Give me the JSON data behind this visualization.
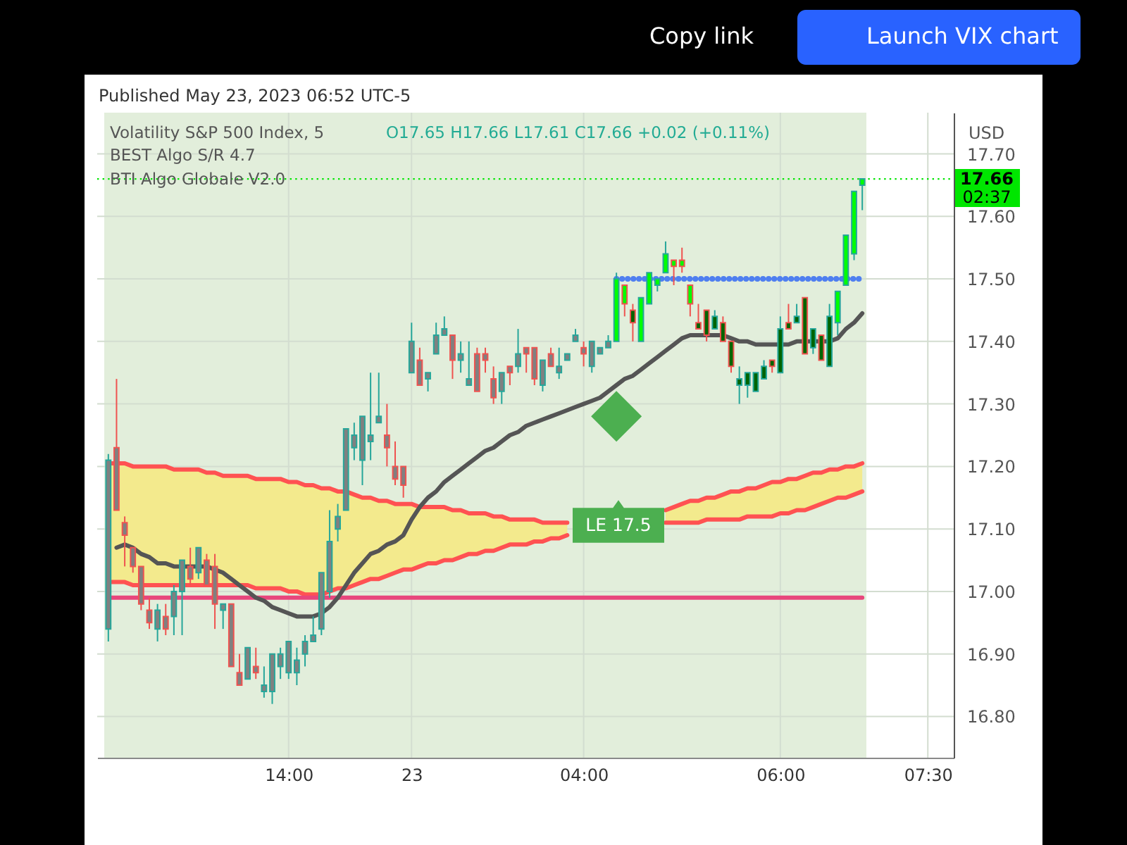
{
  "chart_data": {
    "type": "candlestick",
    "title": "Volatility S&P 500 Index, 5",
    "subtitle": "O17.65 H17.66 L17.61 C17.66 +0.02 (+0.11%)",
    "ylabel": "USD",
    "categories": [
      null,
      null,
      null,
      null,
      null,
      null,
      null,
      null,
      null,
      null,
      null,
      null,
      null,
      null,
      null,
      null,
      null,
      null,
      null,
      null,
      null,
      null,
      "14:00",
      null,
      null,
      null,
      null,
      null,
      null,
      null,
      null,
      null,
      null,
      null,
      null,
      null,
      null,
      "23",
      null,
      null,
      null,
      null,
      null,
      null,
      null,
      null,
      null,
      null,
      null,
      null,
      null,
      null,
      null,
      null,
      null,
      null,
      null,
      null,
      "04:00",
      null,
      null,
      null,
      null,
      null,
      null,
      null,
      null,
      null,
      null,
      null,
      null,
      null,
      null,
      null,
      null,
      null,
      null,
      null,
      null,
      null,
      null,
      null,
      "06:00",
      null,
      null,
      null,
      null,
      null,
      null,
      null,
      null,
      null,
      null,
      null,
      null,
      null,
      null,
      null,
      null,
      null,
      "07:30",
      null,
      null
    ],
    "ohlc": [
      [
        16.94,
        17.22,
        16.92,
        17.21
      ],
      [
        17.23,
        17.34,
        17.13,
        17.13
      ],
      [
        17.11,
        17.12,
        17.04,
        17.09
      ],
      [
        17.07,
        17.07,
        17.03,
        17.04
      ],
      [
        17.04,
        17.04,
        16.97,
        16.98
      ],
      [
        16.97,
        16.99,
        16.94,
        16.95
      ],
      [
        16.94,
        16.98,
        16.92,
        16.97
      ],
      [
        16.96,
        16.98,
        16.93,
        16.94
      ],
      [
        16.96,
        17.01,
        16.93,
        17.0
      ],
      [
        17.0,
        17.05,
        16.93,
        17.05
      ],
      [
        17.04,
        17.07,
        17.01,
        17.02
      ],
      [
        17.03,
        17.07,
        17.02,
        17.07
      ],
      [
        17.05,
        17.06,
        17.01,
        17.01
      ],
      [
        17.04,
        17.06,
        16.94,
        16.98
      ],
      [
        16.97,
        16.98,
        16.94,
        16.98
      ],
      [
        16.98,
        16.98,
        16.88,
        16.88
      ],
      [
        16.87,
        16.9,
        16.85,
        16.85
      ],
      [
        16.86,
        16.91,
        16.86,
        16.91
      ],
      [
        16.88,
        16.91,
        16.86,
        16.87
      ],
      [
        16.84,
        16.88,
        16.83,
        16.85
      ],
      [
        16.84,
        16.9,
        16.82,
        16.9
      ],
      [
        16.88,
        16.91,
        16.86,
        16.9
      ],
      [
        16.87,
        16.92,
        16.86,
        16.92
      ],
      [
        16.87,
        16.91,
        16.85,
        16.89
      ],
      [
        16.9,
        16.93,
        16.88,
        16.92
      ],
      [
        16.92,
        16.96,
        16.92,
        16.93
      ],
      [
        16.94,
        17.03,
        16.93,
        17.03
      ],
      [
        17.0,
        17.13,
        16.99,
        17.08
      ],
      [
        17.1,
        17.14,
        17.08,
        17.12
      ],
      [
        17.13,
        17.26,
        17.13,
        17.26
      ],
      [
        17.23,
        17.27,
        17.21,
        17.25
      ],
      [
        17.21,
        17.28,
        17.17,
        17.28
      ],
      [
        17.24,
        17.35,
        17.21,
        17.25
      ],
      [
        17.27,
        17.35,
        17.27,
        17.28
      ],
      [
        17.25,
        17.3,
        17.2,
        17.23
      ],
      [
        17.2,
        17.24,
        17.17,
        17.18
      ],
      [
        17.2,
        17.2,
        17.15,
        17.17
      ],
      [
        17.35,
        17.43,
        17.35,
        17.4
      ],
      [
        17.37,
        17.39,
        17.33,
        17.33
      ],
      [
        17.34,
        17.35,
        17.32,
        17.35
      ],
      [
        17.38,
        17.43,
        17.38,
        17.41
      ],
      [
        17.41,
        17.44,
        17.41,
        17.42
      ],
      [
        17.41,
        17.41,
        17.34,
        17.37
      ],
      [
        17.37,
        17.4,
        17.35,
        17.38
      ],
      [
        17.33,
        17.4,
        17.33,
        17.34
      ],
      [
        17.38,
        17.39,
        17.32,
        17.32
      ],
      [
        17.38,
        17.39,
        17.35,
        17.37
      ],
      [
        17.34,
        17.36,
        17.3,
        17.31
      ],
      [
        17.32,
        17.35,
        17.3,
        17.35
      ],
      [
        17.36,
        17.36,
        17.33,
        17.35
      ],
      [
        17.36,
        17.42,
        17.35,
        17.38
      ],
      [
        17.39,
        17.39,
        17.35,
        17.38
      ],
      [
        17.39,
        17.39,
        17.33,
        17.34
      ],
      [
        17.33,
        17.37,
        17.32,
        17.37
      ],
      [
        17.38,
        17.39,
        17.36,
        17.36
      ],
      [
        17.35,
        17.39,
        17.34,
        17.36
      ],
      [
        17.37,
        17.38,
        17.37,
        17.38
      ],
      [
        17.4,
        17.42,
        17.4,
        17.41
      ],
      [
        17.39,
        17.4,
        17.36,
        17.38
      ],
      [
        17.36,
        17.4,
        17.35,
        17.4
      ],
      [
        17.38,
        17.39,
        17.38,
        17.39
      ],
      [
        17.39,
        17.41,
        17.39,
        17.4
      ],
      [
        17.4,
        17.51,
        17.4,
        17.5
      ],
      [
        17.49,
        17.49,
        17.44,
        17.46
      ],
      [
        17.45,
        17.46,
        17.4,
        17.43
      ],
      [
        17.4,
        17.47,
        17.4,
        17.47
      ],
      [
        17.46,
        17.51,
        17.46,
        17.51
      ],
      [
        17.49,
        17.5,
        17.48,
        17.5
      ],
      [
        17.51,
        17.56,
        17.51,
        17.54
      ],
      [
        17.53,
        17.53,
        17.49,
        17.52
      ],
      [
        17.53,
        17.55,
        17.51,
        17.52
      ],
      [
        17.49,
        17.49,
        17.44,
        17.46
      ],
      [
        17.43,
        17.46,
        17.42,
        17.42
      ],
      [
        17.45,
        17.45,
        17.4,
        17.41
      ],
      [
        17.42,
        17.45,
        17.42,
        17.44
      ],
      [
        17.43,
        17.44,
        17.4,
        17.4
      ],
      [
        17.4,
        17.4,
        17.35,
        17.36
      ],
      [
        17.33,
        17.36,
        17.3,
        17.34
      ],
      [
        17.33,
        17.35,
        17.31,
        17.35
      ],
      [
        17.32,
        17.35,
        17.32,
        17.35
      ],
      [
        17.34,
        17.37,
        17.34,
        17.36
      ],
      [
        17.37,
        17.37,
        17.35,
        17.36
      ],
      [
        17.35,
        17.44,
        17.35,
        17.42
      ],
      [
        17.43,
        17.46,
        17.42,
        17.42
      ],
      [
        17.43,
        17.46,
        17.43,
        17.44
      ],
      [
        17.47,
        17.47,
        17.38,
        17.38
      ],
      [
        17.39,
        17.42,
        17.38,
        17.42
      ],
      [
        17.41,
        17.41,
        17.37,
        17.37
      ],
      [
        17.36,
        17.46,
        17.36,
        17.44
      ],
      [
        17.43,
        17.48,
        17.41,
        17.48
      ],
      [
        17.49,
        17.57,
        17.49,
        17.57
      ],
      [
        17.54,
        17.64,
        17.53,
        17.64
      ],
      [
        17.65,
        17.66,
        17.61,
        17.66
      ],
      null,
      null,
      null,
      null,
      null,
      null,
      null,
      null,
      null,
      null
    ],
    "colors": [
      "#808080",
      "#808080",
      "#808080",
      "#808080",
      "#808080",
      "#808080",
      "#808080",
      "#808080",
      "#808080",
      "#808080",
      "#808080",
      "#808080",
      "#808080",
      "#808080",
      "#808080",
      "#808080",
      "#808080",
      "#808080",
      "#808080",
      "#808080",
      "#808080",
      "#808080",
      "#808080",
      "#808080",
      "#808080",
      "#808080",
      "#808080",
      "#808080",
      "#808080",
      "#808080",
      "#808080",
      "#808080",
      "#808080",
      "#808080",
      "#808080",
      "#808080",
      "#808080",
      "#808080",
      "#808080",
      "#808080",
      "#808080",
      "#808080",
      "#808080",
      "#808080",
      "#808080",
      "#808080",
      "#808080",
      "#808080",
      "#808080",
      "#808080",
      "#808080",
      "#808080",
      "#808080",
      "#808080",
      "#808080",
      "#808080",
      "#808080",
      "#808080",
      "#808080",
      "#808080",
      "#808080",
      "#808080",
      "#00ff00",
      "#00ff00",
      "#006400",
      "#00ff00",
      "#00ff00",
      "#00ff00",
      "#00ff00",
      "#00ff00",
      "#00ff00",
      "#00ff00",
      "#006400",
      "#006400",
      "#006400",
      "#006400",
      "#006400",
      "#006400",
      "#006400",
      "#006400",
      "#006400",
      "#006400",
      "#006400",
      "#006400",
      "#006400",
      "#006400",
      "#006400",
      "#006400",
      "#006400",
      "#00ff00",
      "#00ff00",
      "#00ff00",
      "#00ff00",
      null,
      null,
      null,
      null,
      null,
      null,
      null,
      null,
      null,
      null
    ],
    "ylim": [
      16.734,
      17.766
    ],
    "yticks": [
      {
        "value": 16.8,
        "label": "16.80"
      },
      {
        "value": 16.9,
        "label": "16.90"
      },
      {
        "value": 17.0,
        "label": "17.00"
      },
      {
        "value": 17.1,
        "label": "17.10"
      },
      {
        "value": 17.2,
        "label": "17.20"
      },
      {
        "value": 17.3,
        "label": "17.30"
      },
      {
        "value": 17.4,
        "label": "17.40"
      },
      {
        "value": 17.5,
        "label": "17.50"
      },
      {
        "value": 17.6,
        "label": "17.60"
      },
      {
        "value": 17.7,
        "label": "17.70"
      }
    ],
    "grid": true,
    "series": [
      {
        "type": "line",
        "color": "#ff5252",
        "values": [
          17.205,
          17.205,
          17.205,
          17.2,
          17.2,
          17.2,
          17.2,
          17.2,
          17.195,
          17.195,
          17.195,
          17.195,
          17.19,
          17.19,
          17.185,
          17.185,
          17.185,
          17.185,
          17.18,
          17.18,
          17.18,
          17.18,
          17.175,
          17.175,
          17.17,
          17.17,
          17.165,
          17.165,
          17.16,
          17.16,
          17.155,
          17.15,
          17.15,
          17.145,
          17.145,
          17.14,
          17.14,
          17.14,
          17.135,
          17.135,
          17.135,
          17.135,
          17.13,
          17.13,
          17.125,
          17.125,
          17.125,
          17.12,
          17.12,
          17.115,
          17.115,
          17.115,
          17.115,
          17.11,
          17.11,
          17.11,
          17.11,
          null,
          null,
          null,
          null,
          null,
          null,
          null,
          null,
          null,
          null,
          null,
          17.11,
          17.11,
          17.11,
          17.11,
          17.11,
          17.115,
          17.115,
          17.115,
          17.115,
          17.115,
          17.12,
          17.12,
          17.12,
          17.12,
          17.125,
          17.125,
          17.13,
          17.13,
          17.135,
          17.14,
          17.145,
          17.15,
          17.15,
          17.155,
          17.16,
          null,
          null,
          null,
          null,
          null,
          null,
          null,
          null,
          null,
          null
        ],
        "upper": [
          17.205,
          17.205,
          17.205,
          17.2,
          17.2,
          17.2,
          17.2,
          17.2,
          17.195,
          17.195,
          17.195,
          17.195,
          17.19,
          17.19,
          17.185,
          17.185,
          17.185,
          17.185,
          17.18,
          17.18,
          17.18,
          17.18,
          17.175,
          17.175,
          17.17,
          17.17,
          17.165,
          17.165,
          17.16,
          17.16,
          17.155,
          17.15,
          17.15,
          17.145,
          17.145,
          17.14,
          17.14,
          17.14,
          17.135,
          17.135,
          17.135,
          17.135,
          17.13,
          17.13,
          17.125,
          17.125,
          17.125,
          17.12,
          17.12,
          17.115,
          17.115,
          17.115,
          17.115,
          17.11,
          17.11,
          17.11,
          17.11,
          null,
          null,
          null,
          null,
          null,
          null,
          null,
          null,
          null,
          null,
          null,
          17.11,
          17.11,
          17.11,
          17.11,
          17.11,
          17.115,
          17.115,
          17.115,
          17.115,
          17.115,
          17.12,
          17.12,
          17.12,
          17.12,
          17.125,
          17.125,
          17.13,
          17.13,
          17.135,
          17.14,
          17.145,
          17.15,
          17.15,
          17.155,
          17.16,
          null,
          null,
          null,
          null,
          null,
          null,
          null,
          null,
          null,
          null
        ],
        "lower": [
          17.015,
          17.015,
          17.015,
          17.01,
          17.01,
          17.01,
          17.01,
          17.01,
          17.01,
          17.01,
          17.01,
          17.01,
          17.01,
          17.01,
          17.01,
          17.01,
          17.01,
          17.01,
          17.005,
          17.005,
          17.005,
          17.005,
          17.0,
          17.0,
          16.995,
          16.995,
          16.995,
          17.0,
          17.005,
          17.005,
          17.01,
          17.015,
          17.02,
          17.02,
          17.025,
          17.03,
          17.035,
          17.035,
          17.04,
          17.045,
          17.045,
          17.05,
          17.05,
          17.055,
          17.06,
          17.06,
          17.065,
          17.065,
          17.07,
          17.075,
          17.075,
          17.075,
          17.08,
          17.08,
          17.085,
          17.085,
          17.09,
          null,
          null,
          null,
          null,
          null,
          null,
          null,
          null,
          null,
          null,
          null,
          17.13,
          17.135,
          17.14,
          17.145,
          17.145,
          17.15,
          17.15,
          17.155,
          17.16,
          17.16,
          17.165,
          17.165,
          17.17,
          17.175,
          17.175,
          17.18,
          17.18,
          17.185,
          17.19,
          17.19,
          17.195,
          17.195,
          17.2,
          17.2,
          17.205,
          null,
          null,
          null,
          null,
          null,
          null,
          null,
          null,
          null,
          null
        ]
      },
      {
        "type": "line",
        "color": "#ff5252",
        "values": [
          17.015,
          17.015,
          17.015,
          17.01,
          17.01,
          17.01,
          17.01,
          17.01,
          17.01,
          17.01,
          17.01,
          17.01,
          17.01,
          17.01,
          17.01,
          17.01,
          17.01,
          17.01,
          17.005,
          17.005,
          17.005,
          17.005,
          17.0,
          17.0,
          16.995,
          16.995,
          16.995,
          17.0,
          17.005,
          17.005,
          17.01,
          17.015,
          17.02,
          17.02,
          17.025,
          17.03,
          17.035,
          17.035,
          17.04,
          17.045,
          17.045,
          17.05,
          17.05,
          17.055,
          17.06,
          17.06,
          17.065,
          17.065,
          17.07,
          17.075,
          17.075,
          17.075,
          17.08,
          17.08,
          17.085,
          17.085,
          17.09,
          null,
          null,
          null,
          null,
          null,
          null,
          null,
          null,
          null,
          null,
          null,
          17.13,
          17.135,
          17.14,
          17.145,
          17.145,
          17.15,
          17.15,
          17.155,
          17.16,
          17.16,
          17.165,
          17.165,
          17.17,
          17.175,
          17.175,
          17.18,
          17.18,
          17.185,
          17.19,
          17.19,
          17.195,
          17.195,
          17.2,
          17.2,
          17.205,
          null,
          null,
          null,
          null,
          null,
          null,
          null,
          null,
          null,
          null
        ]
      },
      {
        "type": "line",
        "color": "#e8467c",
        "values": [
          16.99,
          16.99,
          16.99,
          16.99,
          16.99,
          16.99,
          16.99,
          16.99,
          16.99,
          16.99,
          16.99,
          16.99,
          16.99,
          16.99,
          16.99,
          16.99,
          16.99,
          16.99,
          16.99,
          16.99,
          16.99,
          16.99,
          16.99,
          16.99,
          16.99,
          16.99,
          16.99,
          16.99,
          16.99,
          16.99,
          16.99,
          16.99,
          16.99,
          16.99,
          16.99,
          16.99,
          16.99,
          16.99,
          16.99,
          16.99,
          16.99,
          16.99,
          16.99,
          16.99,
          16.99,
          16.99,
          16.99,
          16.99,
          16.99,
          16.99,
          16.99,
          16.99,
          16.99,
          16.99,
          16.99,
          16.99,
          16.99,
          16.99,
          16.99,
          16.99,
          16.99,
          16.99,
          16.99,
          16.99,
          16.99,
          16.99,
          16.99,
          16.99,
          16.99,
          16.99,
          16.99,
          16.99,
          16.99,
          16.99,
          16.99,
          16.99,
          16.99,
          16.99,
          16.99,
          16.99,
          16.99,
          16.99,
          16.99,
          16.99,
          16.99,
          16.99,
          16.99,
          16.99,
          16.99,
          16.99,
          16.99,
          16.99,
          16.99,
          null,
          null,
          null,
          null,
          null,
          null,
          null,
          null,
          null,
          null
        ]
      },
      {
        "type": "line",
        "color": "#555555",
        "values": [
          null,
          17.07,
          17.075,
          17.07,
          17.06,
          17.055,
          17.045,
          17.045,
          17.04,
          17.04,
          17.04,
          17.04,
          17.04,
          17.035,
          17.03,
          17.02,
          17.01,
          17.0,
          16.99,
          16.985,
          16.975,
          16.97,
          16.965,
          16.96,
          16.96,
          16.96,
          16.965,
          16.975,
          16.99,
          17.01,
          17.03,
          17.045,
          17.06,
          17.065,
          17.075,
          17.08,
          17.09,
          17.115,
          17.135,
          17.15,
          17.16,
          17.175,
          17.185,
          17.195,
          17.205,
          17.215,
          17.225,
          17.23,
          17.24,
          17.25,
          17.255,
          17.265,
          17.27,
          17.275,
          17.28,
          17.285,
          17.29,
          17.295,
          17.3,
          17.305,
          17.31,
          17.32,
          17.33,
          17.34,
          17.345,
          17.355,
          17.365,
          17.375,
          17.385,
          17.395,
          17.405,
          17.41,
          17.41,
          17.41,
          17.41,
          17.41,
          17.405,
          17.4,
          17.4,
          17.395,
          17.395,
          17.395,
          17.395,
          17.395,
          17.4,
          17.4,
          17.4,
          17.4,
          17.4,
          17.405,
          17.42,
          17.43,
          17.445,
          null,
          null,
          null,
          null,
          null,
          null,
          null,
          null,
          null,
          null
        ]
      },
      {
        "type": "line",
        "color": "#4f7ff0",
        "line_style": "dotted",
        "values": [
          null,
          null,
          null,
          null,
          null,
          null,
          null,
          null,
          null,
          null,
          null,
          null,
          null,
          null,
          null,
          null,
          null,
          null,
          null,
          null,
          null,
          null,
          null,
          null,
          null,
          null,
          null,
          null,
          null,
          null,
          null,
          null,
          null,
          null,
          null,
          null,
          null,
          null,
          null,
          null,
          null,
          null,
          null,
          null,
          null,
          null,
          null,
          null,
          null,
          null,
          null,
          null,
          null,
          null,
          null,
          null,
          null,
          null,
          null,
          null,
          null,
          null,
          17.5,
          17.5,
          17.5,
          17.5,
          17.5,
          17.5,
          17.5,
          17.5,
          17.5,
          17.5,
          17.5,
          17.5,
          17.5,
          17.5,
          17.5,
          17.5,
          17.5,
          17.5,
          17.5,
          17.5,
          17.5,
          17.5,
          17.5,
          17.5,
          17.5,
          17.5,
          17.5,
          17.5,
          17.5,
          17.5,
          17.5,
          null,
          null,
          null,
          null,
          null,
          null,
          null,
          null,
          null,
          null
        ]
      },
      {
        "type": "scatter",
        "color": "#4caf50",
        "marker": "diamond",
        "values": [
          null,
          null,
          null,
          null,
          null,
          null,
          null,
          null,
          null,
          null,
          null,
          null,
          null,
          null,
          null,
          null,
          null,
          null,
          null,
          null,
          null,
          null,
          null,
          null,
          null,
          null,
          null,
          null,
          null,
          null,
          null,
          null,
          null,
          null,
          null,
          null,
          null,
          null,
          null,
          null,
          null,
          null,
          null,
          null,
          null,
          null,
          null,
          null,
          null,
          null,
          null,
          null,
          null,
          null,
          null,
          null,
          null,
          null,
          null,
          null,
          null,
          null,
          17.28,
          null,
          null,
          null,
          null,
          null,
          null,
          null,
          null,
          null,
          null,
          null,
          null,
          null,
          null,
          null,
          null,
          null,
          null,
          null,
          null,
          null,
          null,
          null,
          null,
          null,
          null,
          null,
          null,
          null,
          null,
          null,
          null,
          null,
          null,
          null,
          null,
          null,
          null,
          null,
          null
        ]
      }
    ],
    "ref_lines": [
      {
        "axis": "y",
        "value": 17.66,
        "label": "17.66",
        "color": "#00e600",
        "line_style": "dotted"
      }
    ],
    "annotations": [
      "Published May 23, 2023 06:52 UTC-5",
      "BEST Algo S/R 4.7",
      "BTI Algo Globale V2.0",
      "Copy link",
      "Launch VIX chart",
      "LE 17.5",
      "02:37"
    ]
  }
}
